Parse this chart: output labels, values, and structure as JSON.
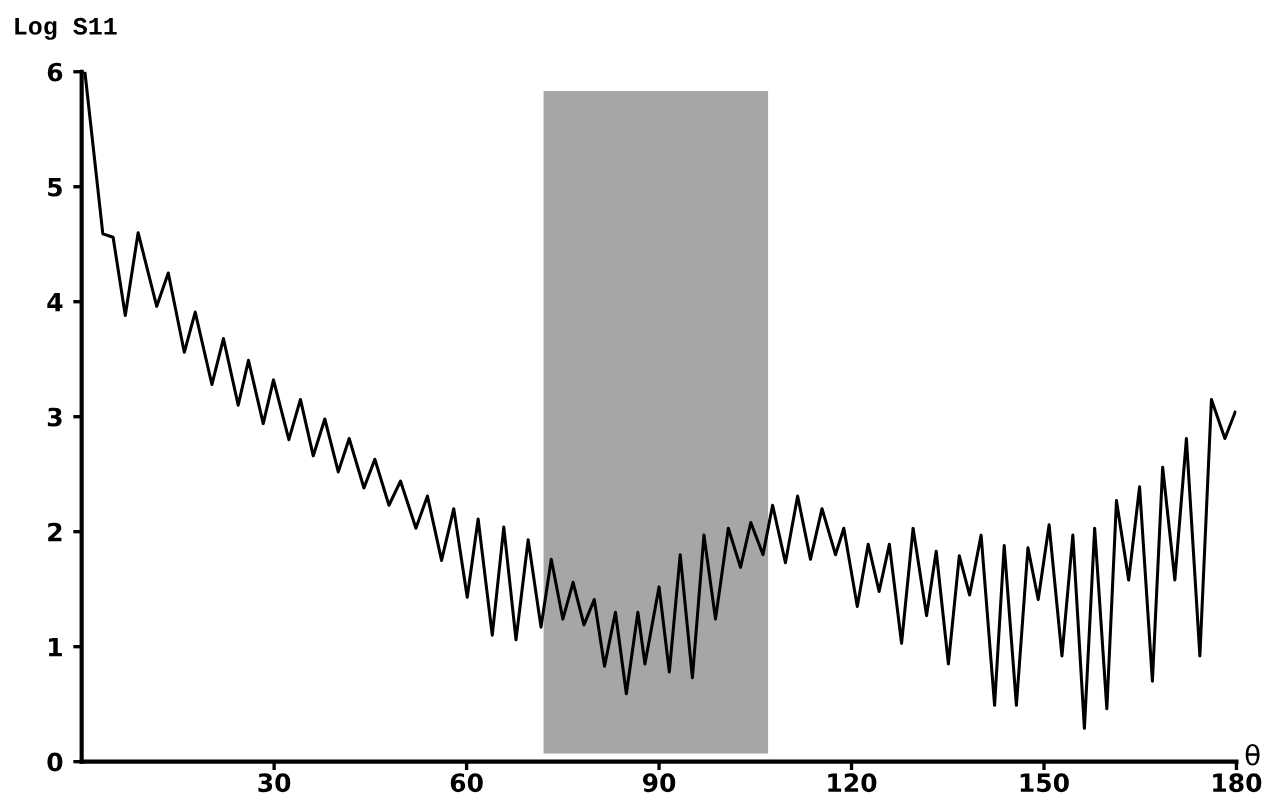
{
  "chart_data": {
    "type": "line",
    "ylabel": "Log S11",
    "xlabel": "θ",
    "xlim": [
      0,
      180
    ],
    "ylim": [
      0,
      6
    ],
    "xticks": [
      30,
      60,
      90,
      120,
      150,
      180
    ],
    "yticks": [
      0,
      1,
      2,
      3,
      4,
      5,
      6
    ],
    "grid": false,
    "legend": false,
    "marker": "none",
    "line_style": "solid",
    "bands": [
      {
        "axis": "x",
        "from": 72,
        "to": 107,
        "color": "#a6a6a6"
      }
    ],
    "series": [
      {
        "color": "#000000",
        "x": [
          0,
          0.5,
          3.3,
          4.9,
          6.8,
          8.8,
          11.7,
          13.5,
          16,
          17.7,
          20.3,
          22.1,
          24.4,
          26,
          28.3,
          29.9,
          32.3,
          34.1,
          36.1,
          37.9,
          40,
          41.7,
          44,
          45.7,
          47.9,
          49.7,
          52.1,
          53.9,
          56.1,
          58,
          60.1,
          61.8,
          64,
          65.8,
          67.7,
          69.6,
          71.6,
          73.2,
          75,
          76.6,
          78.3,
          79.9,
          81.5,
          83.2,
          84.9,
          86.7,
          87.8,
          90,
          91.6,
          93.3,
          95.2,
          97,
          98.8,
          100.8,
          102.7,
          104.3,
          106.2,
          107.7,
          109.7,
          111.6,
          113.6,
          115.4,
          117.5,
          118.8,
          120.9,
          122.6,
          124.3,
          125.9,
          127.8,
          129.6,
          131.7,
          133.2,
          135.1,
          136.8,
          138.4,
          140.2,
          142.3,
          143.8,
          145.7,
          147.5,
          149.1,
          150.8,
          152.8,
          154.5,
          156.3,
          157.9,
          159.8,
          161.3,
          163.2,
          164.9,
          166.9,
          168.5,
          170.4,
          172.2,
          174.3,
          176.1,
          178.2,
          179.8
        ],
        "values": [
          6,
          6,
          4.59,
          4.56,
          3.88,
          4.6,
          3.96,
          4.25,
          3.56,
          3.91,
          3.28,
          3.68,
          3.1,
          3.49,
          2.94,
          3.32,
          2.8,
          3.15,
          2.66,
          2.98,
          2.52,
          2.81,
          2.38,
          2.63,
          2.23,
          2.44,
          2.03,
          2.31,
          1.75,
          2.2,
          1.43,
          2.11,
          1.1,
          2.04,
          1.06,
          1.93,
          1.17,
          1.76,
          1.24,
          1.56,
          1.19,
          1.41,
          0.83,
          1.3,
          0.59,
          1.3,
          0.85,
          1.52,
          0.78,
          1.8,
          0.73,
          1.97,
          1.24,
          2.03,
          1.69,
          2.08,
          1.8,
          2.23,
          1.73,
          2.31,
          1.76,
          2.2,
          1.8,
          2.03,
          1.35,
          1.89,
          1.48,
          1.89,
          1.03,
          2.03,
          1.27,
          1.83,
          0.85,
          1.79,
          1.45,
          1.97,
          0.49,
          1.88,
          0.49,
          1.86,
          1.41,
          2.06,
          0.92,
          1.97,
          0.29,
          2.03,
          0.46,
          2.27,
          1.58,
          2.39,
          0.7,
          2.56,
          1.58,
          2.81,
          0.92,
          3.15,
          2.81,
          3.04
        ]
      }
    ]
  }
}
